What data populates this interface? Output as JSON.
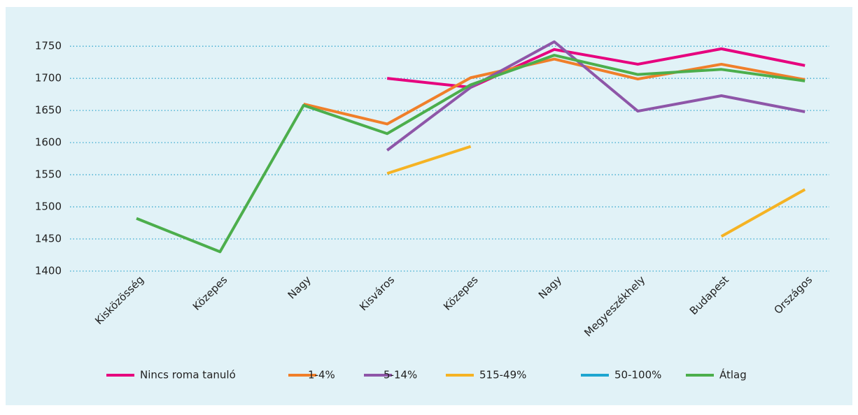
{
  "chart_data": {
    "type": "line",
    "categories": [
      "Kisközösség",
      "Közepes",
      "Nagy",
      "Kisváros",
      "Közepes",
      "Nagy",
      "Megyeszékhely",
      "Budapest",
      "Országos"
    ],
    "series": [
      {
        "name": "Nincs roma tanuló",
        "color": "#e6007e",
        "values": [
          null,
          null,
          null,
          1700,
          1686,
          1745,
          1722,
          1746,
          1720
        ]
      },
      {
        "name": "1-4%",
        "color": "#f07f2a",
        "values": [
          null,
          null,
          1660,
          1629,
          1701,
          1730,
          1699,
          1722,
          1698
        ]
      },
      {
        "name": "5-14%",
        "color": "#8e56a8",
        "values": [
          null,
          null,
          null,
          1588,
          1686,
          1757,
          1649,
          1673,
          1648
        ]
      },
      {
        "name": "515-49%",
        "color": "#f5b324",
        "values": [
          null,
          null,
          null,
          1552,
          1594,
          null,
          null,
          1454,
          1527
        ]
      },
      {
        "name": "50-100%",
        "color": "#1ea6d0",
        "values": [
          null,
          null,
          null,
          null,
          null,
          null,
          null,
          null,
          null
        ]
      },
      {
        "name": "Átlag",
        "color": "#4cae4c",
        "values": [
          1482,
          1430,
          1658,
          1614,
          1690,
          1736,
          1706,
          1714,
          1696
        ]
      }
    ],
    "ylim": [
      1400,
      1760
    ],
    "yticks": [
      1400,
      1450,
      1500,
      1550,
      1600,
      1650,
      1700,
      1750
    ],
    "grid": true,
    "legend": "bottom"
  }
}
